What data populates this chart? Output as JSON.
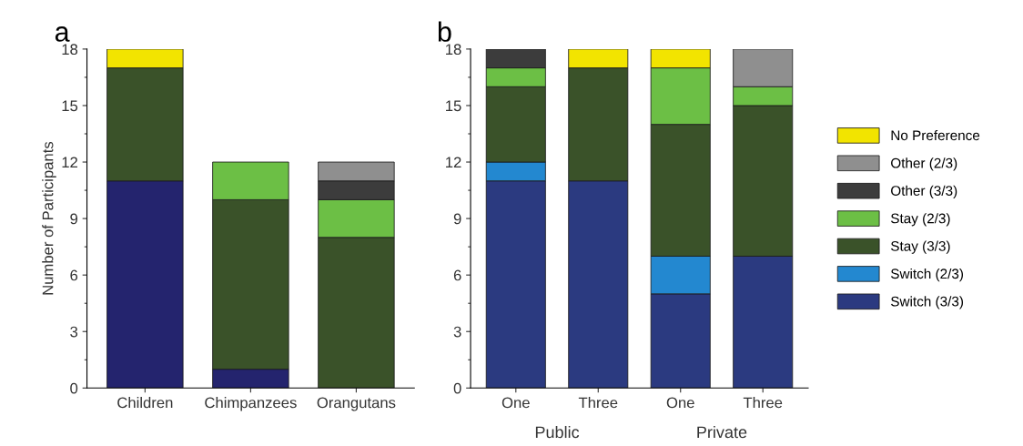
{
  "chart_data": [
    {
      "type": "bar",
      "title": "a",
      "ylabel": "Number of Participants",
      "stacked": true,
      "categories": [
        "Children",
        "Chimpanzees",
        "Orangutans"
      ],
      "ylim": [
        0,
        18
      ],
      "yticks": [
        0,
        3,
        6,
        9,
        12,
        15,
        18
      ],
      "grid": false,
      "legend": false,
      "series": [
        {
          "color": "#24246e",
          "values": [
            11,
            1,
            null
          ]
        },
        {
          "color": "#3a5229",
          "values": [
            6,
            9,
            8
          ]
        },
        {
          "color": "#6cbf45",
          "values": [
            null,
            2,
            2
          ]
        },
        {
          "color": "#3c3c3c",
          "values": [
            null,
            null,
            1
          ]
        },
        {
          "color": "#8f8f8f",
          "values": [
            null,
            null,
            1
          ]
        },
        {
          "color": "#f2e400",
          "values": [
            1,
            null,
            null
          ]
        }
      ]
    },
    {
      "type": "bar",
      "title": "b",
      "stacked": true,
      "categories": [
        "One",
        "Three",
        "One",
        "Three"
      ],
      "annotations": [
        "Public",
        "Private"
      ],
      "ylim": [
        0,
        18
      ],
      "yticks": [
        0,
        3,
        6,
        9,
        12,
        15,
        18
      ],
      "grid": false,
      "legend": "right",
      "series": [
        {
          "name": "Switch (3/3)",
          "color": "#2b3a80",
          "values": [
            11,
            11,
            5,
            7
          ]
        },
        {
          "name": "Switch (2/3)",
          "color": "#2388d0",
          "values": [
            1,
            null,
            2,
            null
          ]
        },
        {
          "name": "Stay (3/3)",
          "color": "#3a5229",
          "values": [
            4,
            6,
            7,
            8
          ]
        },
        {
          "name": "Stay (2/3)",
          "color": "#6cbf45",
          "values": [
            1,
            null,
            3,
            1
          ]
        },
        {
          "name": "Other (3/3)",
          "color": "#3c3c3c",
          "values": [
            1,
            null,
            null,
            null
          ]
        },
        {
          "name": "Other (2/3)",
          "color": "#8f8f8f",
          "values": [
            null,
            null,
            null,
            2
          ]
        },
        {
          "name": "No Preference",
          "color": "#f2e400",
          "values": [
            null,
            1,
            1,
            null
          ]
        }
      ]
    }
  ]
}
